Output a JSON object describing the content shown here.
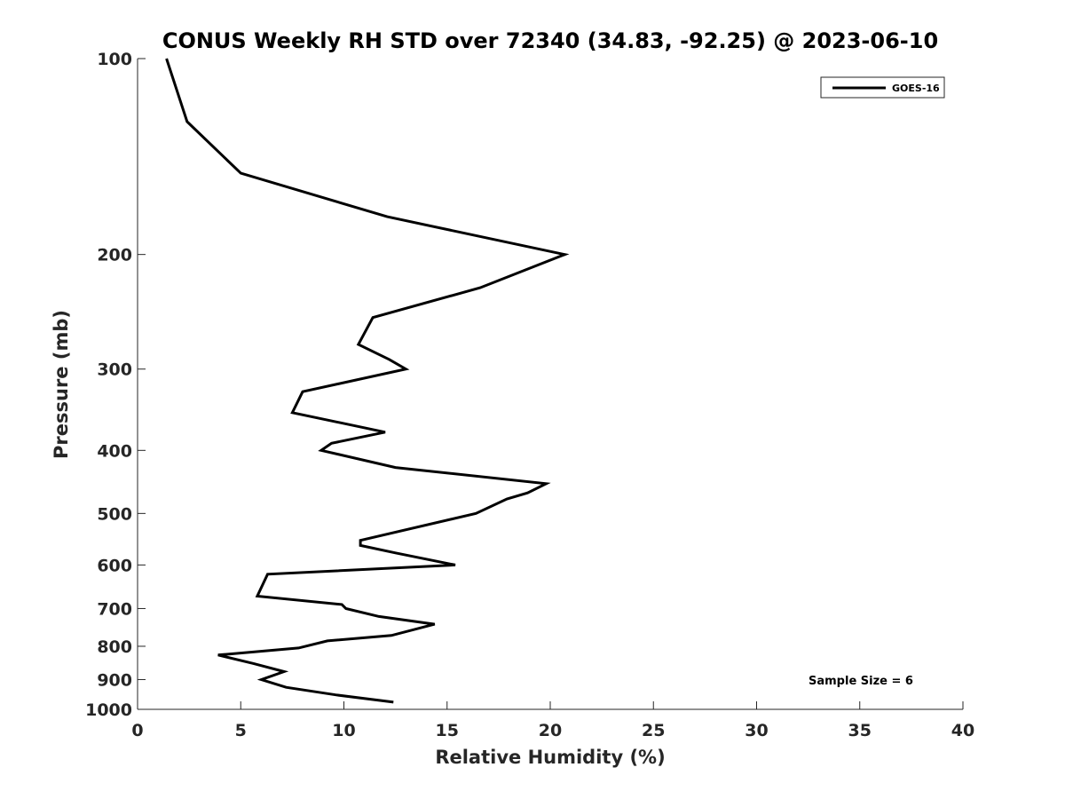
{
  "chart_data": {
    "type": "line",
    "title": "CONUS Weekly RH STD over 72340 (34.83, -92.25) @ 2023-06-10",
    "xlabel": "Relative Humidity (%)",
    "ylabel": "Pressure (mb)",
    "xlim": [
      0,
      40
    ],
    "ylim": [
      100,
      1000
    ],
    "y_scale": "log",
    "y_reversed": true,
    "x_ticks": [
      0,
      5,
      10,
      15,
      20,
      25,
      30,
      35,
      40
    ],
    "y_ticks": [
      100,
      200,
      300,
      400,
      500,
      600,
      700,
      800,
      900,
      1000
    ],
    "grid": false,
    "legend_position": "top-right",
    "series": [
      {
        "name": "GOES-16",
        "color": "#000000",
        "points": [
          {
            "x": 1.4,
            "p": 100
          },
          {
            "x": 2.4,
            "p": 125
          },
          {
            "x": 5.0,
            "p": 150
          },
          {
            "x": 12.1,
            "p": 175
          },
          {
            "x": 20.7,
            "p": 200
          },
          {
            "x": 16.6,
            "p": 225
          },
          {
            "x": 11.4,
            "p": 250
          },
          {
            "x": 10.7,
            "p": 275
          },
          {
            "x": 12.2,
            "p": 290
          },
          {
            "x": 13.0,
            "p": 300
          },
          {
            "x": 8.0,
            "p": 325
          },
          {
            "x": 7.5,
            "p": 350
          },
          {
            "x": 12.0,
            "p": 375
          },
          {
            "x": 9.4,
            "p": 390
          },
          {
            "x": 8.9,
            "p": 400
          },
          {
            "x": 12.5,
            "p": 425
          },
          {
            "x": 19.8,
            "p": 450
          },
          {
            "x": 18.9,
            "p": 465
          },
          {
            "x": 17.9,
            "p": 475
          },
          {
            "x": 16.4,
            "p": 500
          },
          {
            "x": 10.8,
            "p": 550
          },
          {
            "x": 10.8,
            "p": 560
          },
          {
            "x": 12.5,
            "p": 575
          },
          {
            "x": 15.4,
            "p": 600
          },
          {
            "x": 6.3,
            "p": 620
          },
          {
            "x": 5.8,
            "p": 670
          },
          {
            "x": 9.9,
            "p": 690
          },
          {
            "x": 10.1,
            "p": 700
          },
          {
            "x": 11.7,
            "p": 720
          },
          {
            "x": 14.4,
            "p": 740
          },
          {
            "x": 12.3,
            "p": 770
          },
          {
            "x": 9.2,
            "p": 785
          },
          {
            "x": 7.8,
            "p": 805
          },
          {
            "x": 3.9,
            "p": 825
          },
          {
            "x": 5.6,
            "p": 850
          },
          {
            "x": 7.1,
            "p": 875
          },
          {
            "x": 6.0,
            "p": 900
          },
          {
            "x": 7.2,
            "p": 925
          },
          {
            "x": 9.6,
            "p": 950
          },
          {
            "x": 12.4,
            "p": 975
          }
        ]
      }
    ],
    "annotations": [
      "Sample Size = 6"
    ]
  }
}
